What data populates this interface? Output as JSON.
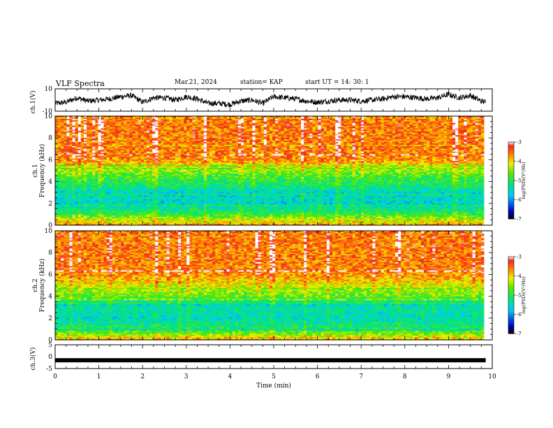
{
  "header": {
    "title": "VLF Spectra",
    "date": "Mar.21, 2024",
    "station": "station= KAP",
    "start": "start UT =   14: 30: 1"
  },
  "colors": {
    "accent": "#000000"
  },
  "chart_data": [
    {
      "type": "line",
      "title": "",
      "xlabel": "",
      "ylabel": "ch.1(V)",
      "xlim": [
        0,
        10
      ],
      "ylim": [
        -10,
        10
      ],
      "yticks": [
        "10",
        "-10"
      ],
      "series": [
        {
          "x": [
            0.0,
            0.25,
            0.5,
            0.75,
            1.0,
            1.25,
            1.5,
            1.75,
            2.0,
            2.25,
            2.5,
            2.75,
            3.0,
            3.25,
            3.5,
            3.75,
            4.0,
            4.25,
            4.5,
            4.75,
            5.0,
            5.25,
            5.5,
            5.75,
            6.0,
            6.25,
            6.5,
            6.75,
            7.0,
            7.25,
            7.5,
            7.75,
            8.0,
            8.25,
            8.5,
            8.75,
            9.0,
            9.25,
            9.5,
            9.75,
            9.85
          ],
          "y": [
            -3,
            -2,
            2,
            -1,
            0,
            1,
            3,
            4,
            -2,
            2,
            2,
            0,
            3,
            1,
            -3,
            -3,
            -4,
            -1,
            0,
            -3,
            3,
            2,
            1,
            -1,
            -2,
            -1,
            0,
            0,
            -1,
            0,
            1,
            3,
            3,
            2,
            1,
            2,
            5,
            2,
            4,
            -1,
            -2
          ]
        }
      ]
    },
    {
      "type": "heatmap",
      "title": "",
      "xlabel": "",
      "ylabel": "ch.1 Frequency (kHz)",
      "xlim": [
        0,
        10
      ],
      "ylim": [
        0,
        10
      ],
      "yticks": [
        "0",
        "2",
        "4",
        "6",
        "8",
        "10"
      ],
      "z_range": [
        -7,
        -3
      ],
      "colorbar_label": "log(PSD)(V²/Hz)",
      "colorbar_ticks": [
        "-3",
        "-4",
        "-5",
        "-6",
        "-7"
      ],
      "mean_level_by_frequency": [
        {
          "f": 0.0,
          "z": -3.7
        },
        {
          "f": 0.5,
          "z": -4.3
        },
        {
          "f": 1.0,
          "z": -4.9
        },
        {
          "f": 1.5,
          "z": -5.3
        },
        {
          "f": 2.0,
          "z": -5.6
        },
        {
          "f": 2.5,
          "z": -5.5
        },
        {
          "f": 3.0,
          "z": -5.6
        },
        {
          "f": 3.5,
          "z": -5.2
        },
        {
          "f": 4.0,
          "z": -5.0
        },
        {
          "f": 4.5,
          "z": -4.8
        },
        {
          "f": 5.0,
          "z": -4.5
        },
        {
          "f": 5.5,
          "z": -4.0
        },
        {
          "f": 6.0,
          "z": -3.7
        },
        {
          "f": 7.0,
          "z": -3.6
        },
        {
          "f": 8.0,
          "z": -3.6
        },
        {
          "f": 9.0,
          "z": -3.6
        },
        {
          "f": 10.0,
          "z": -3.6
        }
      ]
    },
    {
      "type": "heatmap",
      "title": "",
      "xlabel": "",
      "ylabel": "ch.2 Frequency (kHz)",
      "xlim": [
        0,
        10
      ],
      "ylim": [
        0,
        10
      ],
      "yticks": [
        "0",
        "2",
        "4",
        "6",
        "8",
        "10"
      ],
      "z_range": [
        -7,
        -3
      ],
      "colorbar_label": "log(PSD)(V²/Hz)",
      "colorbar_ticks": [
        "-3",
        "-4",
        "-5",
        "-6",
        "-7"
      ],
      "mean_level_by_frequency": [
        {
          "f": 0.0,
          "z": -3.8
        },
        {
          "f": 0.5,
          "z": -4.5
        },
        {
          "f": 1.0,
          "z": -5.0
        },
        {
          "f": 1.5,
          "z": -5.3
        },
        {
          "f": 2.0,
          "z": -5.5
        },
        {
          "f": 2.5,
          "z": -5.4
        },
        {
          "f": 3.0,
          "z": -5.4
        },
        {
          "f": 3.5,
          "z": -5.0
        },
        {
          "f": 4.0,
          "z": -4.7
        },
        {
          "f": 4.5,
          "z": -4.4
        },
        {
          "f": 5.0,
          "z": -4.2
        },
        {
          "f": 5.5,
          "z": -3.9
        },
        {
          "f": 6.0,
          "z": -3.7
        },
        {
          "f": 7.0,
          "z": -3.6
        },
        {
          "f": 8.0,
          "z": -3.6
        },
        {
          "f": 9.0,
          "z": -3.6
        },
        {
          "f": 10.0,
          "z": -3.6
        }
      ]
    },
    {
      "type": "line",
      "title": "",
      "xlabel": "Time (min)",
      "ylabel": "ch.3(V)",
      "xlim": [
        0,
        10
      ],
      "ylim": [
        -5,
        5
      ],
      "yticks": [
        "5",
        "0",
        "-5"
      ],
      "xticks": [
        "0",
        "1",
        "2",
        "3",
        "4",
        "5",
        "6",
        "7",
        "8",
        "9",
        "10"
      ],
      "series": [
        {
          "x": [
            0,
            9.85
          ],
          "y": [
            -1.5,
            -1.5
          ]
        }
      ]
    }
  ]
}
